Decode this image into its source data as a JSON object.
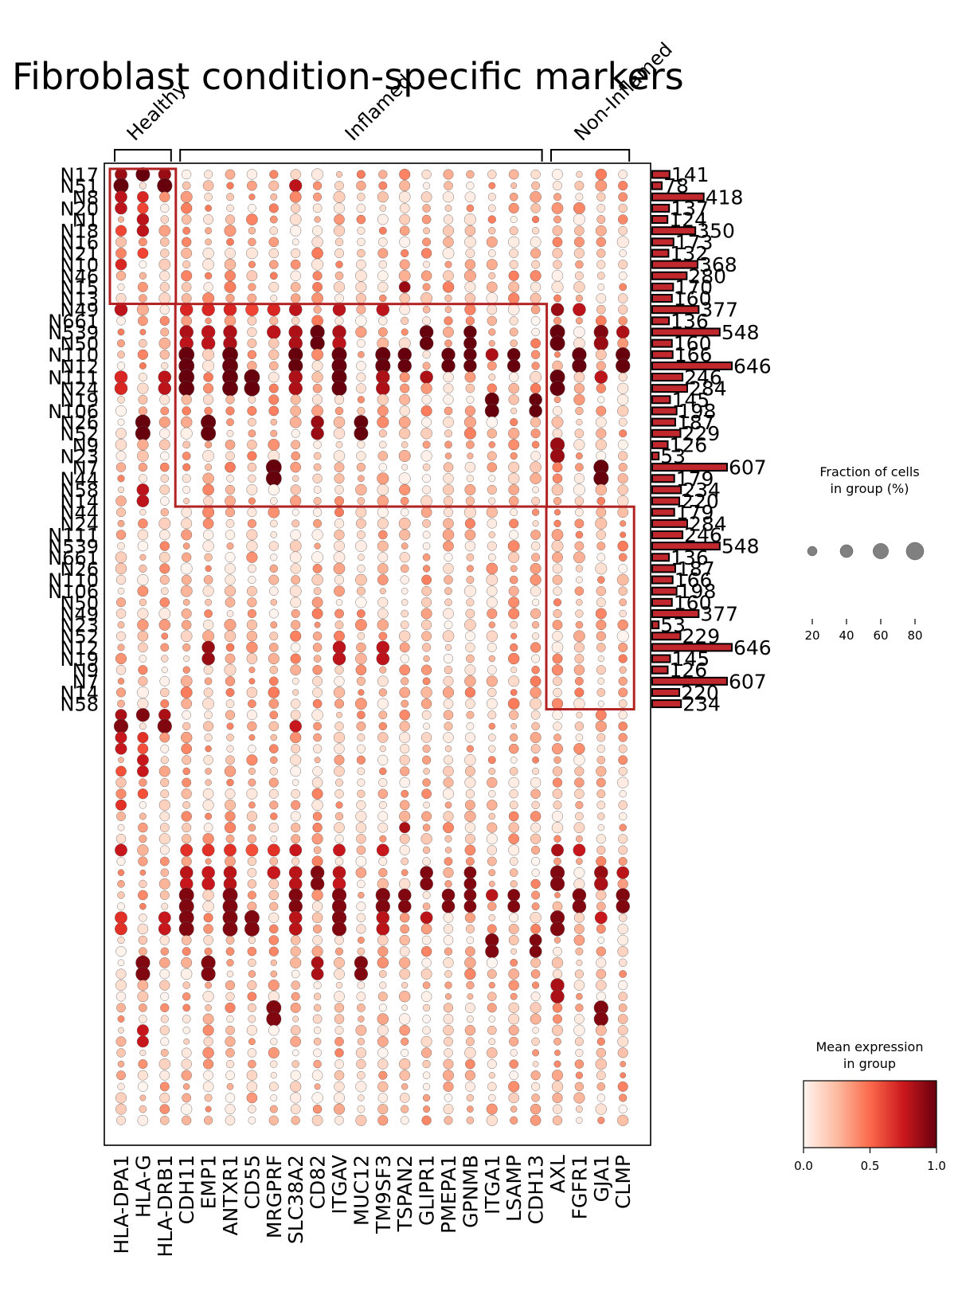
{
  "chart_data": {
    "type": "dotplot",
    "title": "Fibroblast condition-specific markers",
    "genes": [
      "HLA-DPA1",
      "HLA-G",
      "HLA-DRB1",
      "CDH11",
      "EMP1",
      "ANTXR1",
      "CD55",
      "MRGPRF",
      "SLC38A2",
      "CD82",
      "ITGAV",
      "MUC12",
      "TM9SF3",
      "TSPAN2",
      "GLIPR1",
      "PMEPA1",
      "GPNMB",
      "ITGA1",
      "LSAMP",
      "CDH13",
      "AXL",
      "FGFR1",
      "GJA1",
      "CLMP"
    ],
    "gene_groups": [
      {
        "label": "Healthy",
        "start": 0,
        "end": 2
      },
      {
        "label": "Inflamed",
        "start": 3,
        "end": 19
      },
      {
        "label": "Non-Inflamed",
        "start": 20,
        "end": 23
      }
    ],
    "rows": [
      {
        "label": "N17",
        "count": 141
      },
      {
        "label": "N51",
        "count": 78
      },
      {
        "label": "N8",
        "count": 418
      },
      {
        "label": "N20",
        "count": 137
      },
      {
        "label": "N1",
        "count": 124
      },
      {
        "label": "N18",
        "count": 350
      },
      {
        "label": "N16",
        "count": 173
      },
      {
        "label": "N21",
        "count": 132
      },
      {
        "label": "N10",
        "count": 368
      },
      {
        "label": "N46",
        "count": 280
      },
      {
        "label": "N15",
        "count": 170
      },
      {
        "label": "N13",
        "count": 160
      },
      {
        "label": "N49",
        "count": 377
      },
      {
        "label": "N661",
        "count": 136
      },
      {
        "label": "N539",
        "count": 548
      },
      {
        "label": "N50",
        "count": 160
      },
      {
        "label": "N110",
        "count": 166
      },
      {
        "label": "N12",
        "count": 646
      },
      {
        "label": "N111",
        "count": 246
      },
      {
        "label": "N24",
        "count": 284
      },
      {
        "label": "N19",
        "count": 145
      },
      {
        "label": "N106",
        "count": 198
      },
      {
        "label": "N26",
        "count": 187
      },
      {
        "label": "N52",
        "count": 229
      },
      {
        "label": "N9",
        "count": 126
      },
      {
        "label": "N23",
        "count": 53
      },
      {
        "label": "N7",
        "count": 607
      },
      {
        "label": "N44",
        "count": 179
      },
      {
        "label": "N58",
        "count": 234
      },
      {
        "label": "N14",
        "count": 220
      },
      {
        "label": "N44",
        "count": 179
      },
      {
        "label": "N24",
        "count": 284
      },
      {
        "label": "N111",
        "count": 246
      },
      {
        "label": "N539",
        "count": 548
      },
      {
        "label": "N661",
        "count": 136
      },
      {
        "label": "N26",
        "count": 187
      },
      {
        "label": "N110",
        "count": 166
      },
      {
        "label": "N106",
        "count": 198
      },
      {
        "label": "N50",
        "count": 160
      },
      {
        "label": "N49",
        "count": 377
      },
      {
        "label": "N23",
        "count": 53
      },
      {
        "label": "N52",
        "count": 229
      },
      {
        "label": "N12",
        "count": 646
      },
      {
        "label": "N19",
        "count": 145
      },
      {
        "label": "N9",
        "count": 126
      },
      {
        "label": "N7",
        "count": 607
      },
      {
        "label": "N14",
        "count": 220
      },
      {
        "label": "N58",
        "count": 234
      }
    ],
    "hot_rows": [
      {
        "row": 0,
        "cells": [
          [
            0,
            0.9,
            35
          ],
          [
            1,
            1.0,
            48
          ],
          [
            2,
            0.9,
            38
          ]
        ]
      },
      {
        "row": 1,
        "cells": [
          [
            0,
            1.0,
            55
          ],
          [
            2,
            1.0,
            55
          ],
          [
            8,
            0.8,
            38
          ]
        ]
      },
      {
        "row": 2,
        "cells": [
          [
            0,
            0.8,
            35
          ],
          [
            1,
            0.7,
            30
          ]
        ]
      },
      {
        "row": 3,
        "cells": [
          [
            0,
            0.8,
            35
          ],
          [
            1,
            0.6,
            28
          ]
        ]
      },
      {
        "row": 4,
        "cells": [
          [
            1,
            0.8,
            34
          ]
        ]
      },
      {
        "row": 5,
        "cells": [
          [
            0,
            0.6,
            28
          ],
          [
            1,
            0.8,
            34
          ]
        ]
      },
      {
        "row": 7,
        "cells": [
          [
            1,
            0.6,
            26
          ]
        ]
      },
      {
        "row": 8,
        "cells": [
          [
            0,
            0.7,
            30
          ]
        ]
      },
      {
        "row": 10,
        "cells": [
          [
            13,
            0.9,
            30
          ]
        ]
      },
      {
        "row": 12,
        "cells": [
          [
            0,
            0.8,
            40
          ],
          [
            3,
            0.7,
            40
          ],
          [
            4,
            0.7,
            40
          ],
          [
            5,
            0.7,
            40
          ],
          [
            6,
            0.6,
            40
          ],
          [
            7,
            0.7,
            40
          ],
          [
            8,
            0.8,
            40
          ],
          [
            10,
            0.8,
            40
          ],
          [
            12,
            0.8,
            40
          ],
          [
            20,
            0.9,
            40
          ],
          [
            21,
            0.8,
            40
          ]
        ]
      },
      {
        "row": 14,
        "cells": [
          [
            3,
            0.85,
            45
          ],
          [
            4,
            0.8,
            45
          ],
          [
            5,
            0.85,
            45
          ],
          [
            7,
            0.8,
            45
          ],
          [
            8,
            0.85,
            45
          ],
          [
            9,
            1.0,
            50
          ],
          [
            10,
            0.85,
            45
          ],
          [
            14,
            1.0,
            45
          ],
          [
            16,
            1.0,
            40
          ],
          [
            20,
            1.0,
            55
          ],
          [
            22,
            0.95,
            50
          ],
          [
            23,
            0.85,
            40
          ]
        ]
      },
      {
        "row": 15,
        "cells": [
          [
            3,
            0.8,
            45
          ],
          [
            4,
            0.8,
            45
          ],
          [
            5,
            0.85,
            45
          ],
          [
            8,
            0.85,
            45
          ],
          [
            9,
            1.0,
            50
          ],
          [
            10,
            0.8,
            45
          ],
          [
            14,
            1.0,
            45
          ],
          [
            16,
            1.0,
            40
          ],
          [
            20,
            1.0,
            55
          ],
          [
            22,
            0.9,
            50
          ]
        ]
      },
      {
        "row": 16,
        "cells": [
          [
            3,
            1.0,
            60
          ],
          [
            5,
            1.0,
            60
          ],
          [
            8,
            1.0,
            50
          ],
          [
            10,
            1.0,
            55
          ],
          [
            12,
            1.0,
            55
          ],
          [
            13,
            1.0,
            45
          ],
          [
            15,
            1.0,
            45
          ],
          [
            16,
            1.0,
            40
          ],
          [
            17,
            0.85,
            38
          ],
          [
            18,
            1.0,
            40
          ],
          [
            21,
            1.0,
            50
          ],
          [
            23,
            1.0,
            50
          ]
        ]
      },
      {
        "row": 17,
        "cells": [
          [
            3,
            1.0,
            60
          ],
          [
            5,
            1.0,
            60
          ],
          [
            8,
            1.0,
            50
          ],
          [
            10,
            1.0,
            55
          ],
          [
            12,
            1.0,
            55
          ],
          [
            13,
            1.0,
            45
          ],
          [
            15,
            1.0,
            45
          ],
          [
            16,
            1.0,
            40
          ],
          [
            18,
            1.0,
            40
          ],
          [
            21,
            1.0,
            50
          ],
          [
            23,
            1.0,
            50
          ]
        ]
      },
      {
        "row": 18,
        "cells": [
          [
            0,
            0.7,
            40
          ],
          [
            2,
            0.8,
            40
          ],
          [
            3,
            1.0,
            60
          ],
          [
            5,
            1.0,
            60
          ],
          [
            6,
            1.0,
            60
          ],
          [
            8,
            0.85,
            45
          ],
          [
            10,
            1.0,
            55
          ],
          [
            12,
            0.85,
            45
          ],
          [
            14,
            0.85,
            40
          ],
          [
            20,
            1.0,
            55
          ],
          [
            22,
            0.8,
            40
          ]
        ]
      },
      {
        "row": 19,
        "cells": [
          [
            0,
            0.7,
            40
          ],
          [
            2,
            0.8,
            40
          ],
          [
            3,
            1.0,
            60
          ],
          [
            5,
            1.0,
            60
          ],
          [
            6,
            1.0,
            60
          ],
          [
            8,
            0.85,
            45
          ],
          [
            10,
            1.0,
            55
          ],
          [
            12,
            0.85,
            45
          ],
          [
            20,
            1.0,
            55
          ]
        ]
      },
      {
        "row": 20,
        "cells": [
          [
            17,
            1.0,
            48
          ],
          [
            19,
            1.0,
            40
          ]
        ]
      },
      {
        "row": 21,
        "cells": [
          [
            17,
            1.0,
            48
          ],
          [
            19,
            1.0,
            40
          ]
        ]
      },
      {
        "row": 22,
        "cells": [
          [
            1,
            1.0,
            55
          ],
          [
            4,
            1.0,
            55
          ],
          [
            9,
            0.9,
            40
          ],
          [
            11,
            1.0,
            48
          ]
        ]
      },
      {
        "row": 23,
        "cells": [
          [
            1,
            1.0,
            55
          ],
          [
            4,
            1.0,
            55
          ],
          [
            9,
            0.9,
            40
          ],
          [
            11,
            1.0,
            48
          ]
        ]
      },
      {
        "row": 24,
        "cells": [
          [
            20,
            0.9,
            50
          ]
        ]
      },
      {
        "row": 25,
        "cells": [
          [
            20,
            0.9,
            50
          ]
        ]
      },
      {
        "row": 26,
        "cells": [
          [
            7,
            1.0,
            60
          ],
          [
            22,
            1.0,
            55
          ]
        ]
      },
      {
        "row": 27,
        "cells": [
          [
            7,
            1.0,
            60
          ],
          [
            22,
            1.0,
            55
          ]
        ]
      },
      {
        "row": 28,
        "cells": [
          [
            1,
            0.8,
            35
          ]
        ]
      },
      {
        "row": 29,
        "cells": [
          [
            1,
            0.8,
            35
          ]
        ]
      },
      {
        "row": 42,
        "cells": [
          [
            4,
            0.9,
            40
          ],
          [
            10,
            0.8,
            40
          ],
          [
            12,
            0.8,
            40
          ]
        ]
      },
      {
        "row": 43,
        "cells": [
          [
            4,
            0.9,
            40
          ],
          [
            10,
            0.8,
            40
          ],
          [
            12,
            0.8,
            40
          ]
        ]
      }
    ],
    "highlight_boxes": [
      {
        "rows": [
          0,
          11
        ],
        "cols": [
          0,
          2
        ]
      },
      {
        "rows": [
          12,
          29
        ],
        "cols": [
          3,
          19
        ]
      },
      {
        "rows": [
          30,
          47
        ],
        "cols": [
          20,
          23
        ]
      }
    ],
    "size_legend": {
      "title": "Fraction of cells\nin group (%)",
      "ticks": [
        20,
        40,
        60,
        80
      ]
    },
    "color_legend": {
      "title": "Mean expression\nin group",
      "ticks": [
        0.0,
        0.5,
        1.0
      ],
      "tick_labels": [
        "0.0",
        "0.5",
        "1.0"
      ],
      "colormap": "Reds"
    },
    "colors": {
      "box": "#b22222",
      "bar": "#c0282d",
      "dot_edge": "#555555"
    }
  }
}
